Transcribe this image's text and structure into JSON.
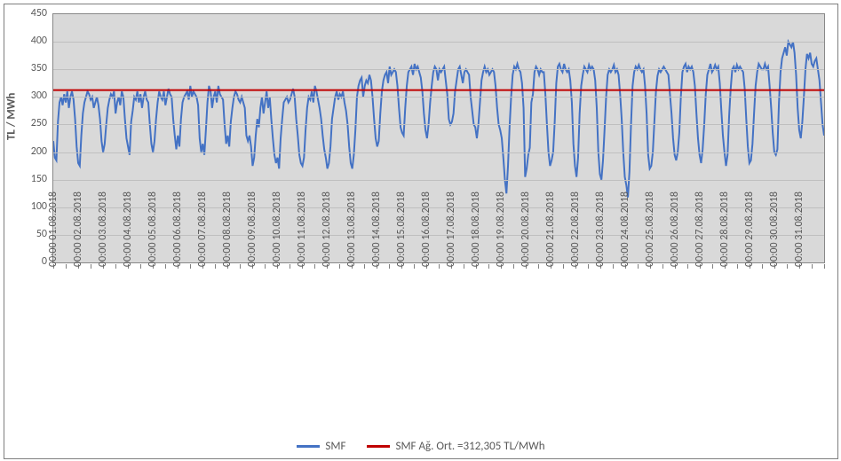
{
  "chart": {
    "type": "line",
    "background_color": "#ffffff",
    "plot_background_color": "#d9d9d9",
    "grid_color": "#bfbfbf",
    "axis_color": "#888888",
    "text_color": "#595959",
    "y_axis": {
      "title": "TL / MWh",
      "title_fontsize": 13,
      "min": 0,
      "max": 450,
      "tick_step": 50,
      "tick_fontsize": 12
    },
    "x_axis": {
      "tick_fontsize": 12,
      "labels": [
        "01.08.2018 00:00",
        "02.08.2018 00:00",
        "03.08.2018 00:00",
        "04.08.2018 00:00",
        "05.08.2018 00:00",
        "06.08.2018 00:00",
        "07.08.2018 00:00",
        "08.08.2018 00:00",
        "09.08.2018 00:00",
        "10.08.2018 00:00",
        "11.08.2018 00:00",
        "12.08.2018 00:00",
        "13.08.2018 00:00",
        "14.08.2018 00:00",
        "15.08.2018 00:00",
        "16.08.2018 00:00",
        "17.08.2018 00:00",
        "18.08.2018 00:00",
        "19.08.2018 00:00",
        "20.08.2018 00:00",
        "21.08.2018 00:00",
        "22.08.2018 00:00",
        "23.08.2018 00:00",
        "24.08.2018 00:00",
        "25.08.2018 00:00",
        "26.08.2018 00:00",
        "27.08.2018 00:00",
        "28.08.2018 00:00",
        "29.08.2018 00:00",
        "30.08.2018 00:00",
        "31.08.2018 00:00"
      ]
    },
    "series": [
      {
        "name": "SMF",
        "legend_label": "SMF",
        "color": "#4472c4",
        "line_width": 2,
        "values": [
          220,
          190,
          185,
          255,
          290,
          300,
          285,
          305,
          290,
          310,
          280,
          300,
          310,
          295,
          260,
          210,
          180,
          175,
          230,
          270,
          290,
          300,
          310,
          305,
          295,
          300,
          280,
          290,
          300,
          285,
          260,
          220,
          200,
          215,
          250,
          280,
          295,
          305,
          300,
          310,
          270,
          290,
          300,
          285,
          310,
          300,
          260,
          225,
          210,
          195,
          255,
          275,
          300,
          295,
          310,
          290,
          305,
          280,
          300,
          310,
          295,
          290,
          250,
          215,
          200,
          220,
          260,
          290,
          310,
          300,
          295,
          310,
          285,
          300,
          315,
          305,
          300,
          260,
          230,
          205,
          230,
          210,
          260,
          290,
          300,
          305,
          310,
          295,
          320,
          300,
          310,
          305,
          300,
          285,
          225,
          200,
          215,
          195,
          240,
          290,
          320,
          310,
          280,
          300,
          310,
          290,
          320,
          305,
          300,
          295,
          250,
          215,
          230,
          210,
          255,
          280,
          300,
          310,
          305,
          295,
          290,
          300,
          290,
          280,
          230,
          220,
          230,
          210,
          175,
          190,
          230,
          260,
          245,
          280,
          300,
          270,
          290,
          310,
          280,
          300,
          260,
          225,
          195,
          180,
          190,
          170,
          225,
          260,
          290,
          295,
          300,
          290,
          295,
          305,
          315,
          300,
          260,
          230,
          195,
          180,
          175,
          190,
          240,
          280,
          300,
          295,
          310,
          290,
          320,
          310,
          295,
          280,
          260,
          230,
          205,
          190,
          170,
          180,
          210,
          260,
          280,
          300,
          310,
          295,
          305,
          300,
          310,
          290,
          275,
          250,
          210,
          180,
          170,
          195,
          240,
          300,
          320,
          330,
          335,
          300,
          320,
          330,
          325,
          340,
          330,
          300,
          260,
          225,
          210,
          220,
          270,
          310,
          330,
          340,
          345,
          325,
          355,
          340,
          345,
          350,
          345,
          320,
          280,
          245,
          235,
          230,
          280,
          320,
          345,
          350,
          355,
          340,
          360,
          350,
          355,
          345,
          335,
          310,
          270,
          240,
          225,
          250,
          290,
          320,
          345,
          355,
          350,
          330,
          350,
          345,
          350,
          355,
          330,
          305,
          260,
          250,
          255,
          270,
          310,
          330,
          350,
          355,
          340,
          325,
          345,
          350,
          345,
          340,
          300,
          275,
          250,
          245,
          225,
          250,
          290,
          330,
          345,
          355,
          345,
          350,
          340,
          345,
          350,
          345,
          320,
          280,
          250,
          240,
          225,
          190,
          150,
          125,
          175,
          245,
          300,
          340,
          355,
          350,
          360,
          350,
          345,
          325,
          280,
          155,
          170,
          195,
          208,
          290,
          305,
          345,
          355,
          350,
          340,
          350,
          345,
          345,
          305,
          250,
          200,
          175,
          185,
          200,
          255,
          325,
          355,
          360,
          350,
          345,
          360,
          350,
          345,
          350,
          330,
          290,
          215,
          175,
          155,
          190,
          270,
          320,
          340,
          355,
          350,
          345,
          358,
          350,
          355,
          350,
          330,
          280,
          200,
          160,
          150,
          185,
          240,
          300,
          340,
          350,
          345,
          350,
          358,
          345,
          350,
          340,
          305,
          260,
          200,
          155,
          140,
          118,
          165,
          250,
          320,
          345,
          355,
          350,
          358,
          350,
          345,
          350,
          320,
          270,
          195,
          170,
          175,
          200,
          255,
          310,
          338,
          350,
          345,
          350,
          355,
          350,
          345,
          340,
          305,
          270,
          225,
          195,
          185,
          200,
          235,
          300,
          345,
          355,
          360,
          345,
          355,
          350,
          355,
          345,
          320,
          270,
          225,
          195,
          180,
          205,
          250,
          305,
          340,
          350,
          360,
          345,
          350,
          358,
          350,
          355,
          325,
          275,
          230,
          200,
          175,
          195,
          265,
          315,
          350,
          355,
          345,
          358,
          350,
          355,
          350,
          345,
          315,
          260,
          210,
          180,
          185,
          215,
          270,
          320,
          345,
          360,
          355,
          350,
          350,
          360,
          350,
          355,
          320,
          280,
          235,
          200,
          195,
          205,
          290,
          345,
          370,
          380,
          390,
          375,
          400,
          395,
          390,
          400,
          380,
          340,
          280,
          240,
          225,
          255,
          300,
          350,
          378,
          370,
          380,
          360,
          355,
          365,
          370,
          350,
          330,
          290,
          250,
          230
        ]
      },
      {
        "name": "SMF_avg",
        "legend_label": "SMF Ağ. Ort. =312,305 TL/MWh",
        "color": "#c00000",
        "line_width": 2,
        "constant_value": 312.305
      }
    ]
  }
}
